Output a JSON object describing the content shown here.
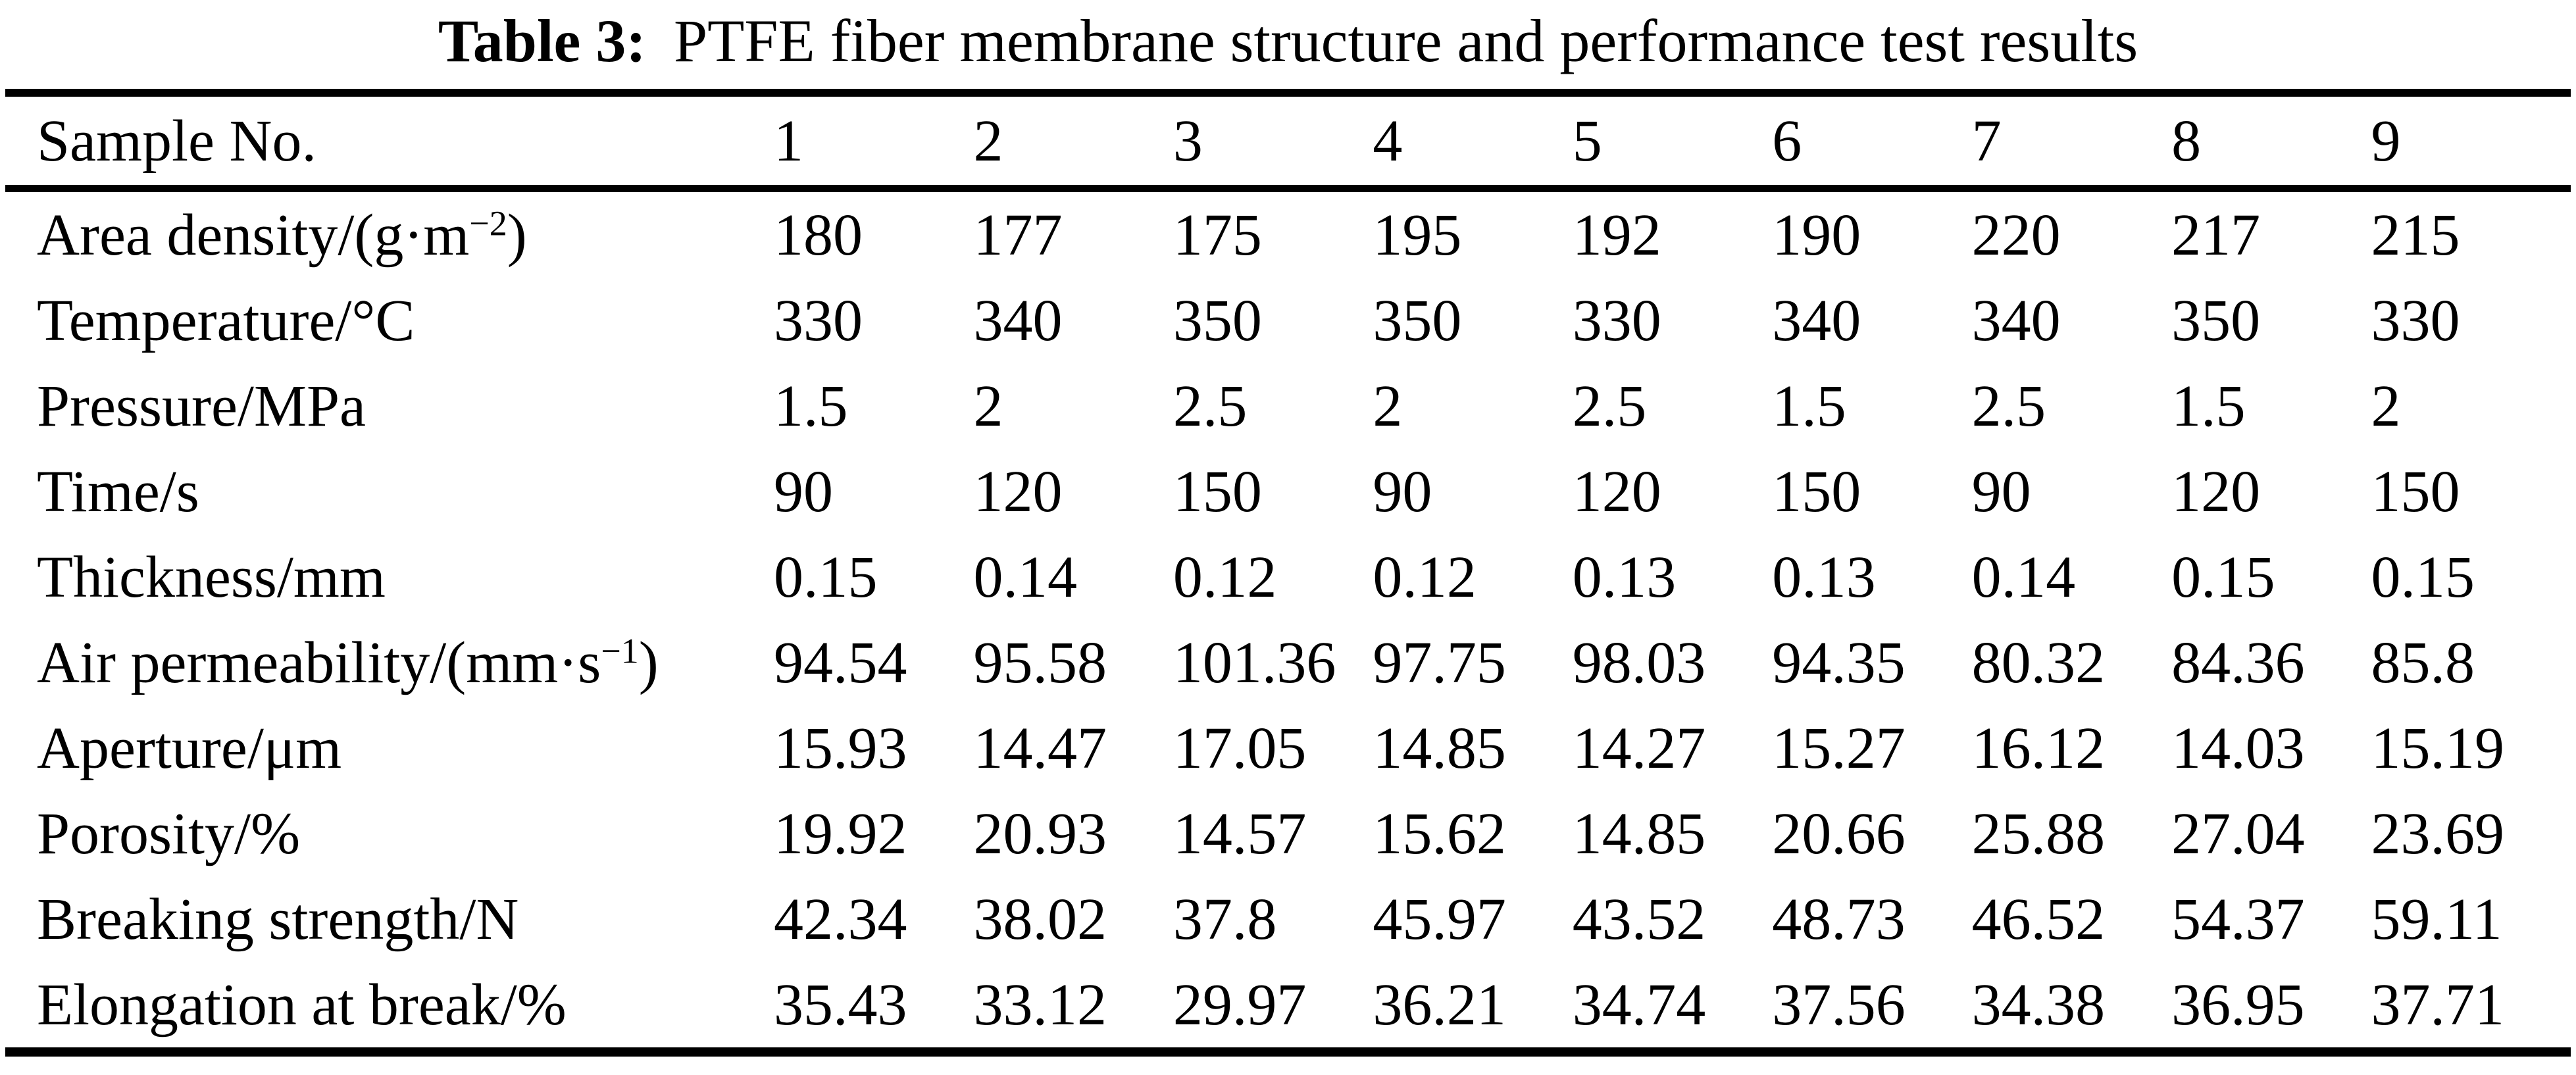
{
  "caption": {
    "label": "Table 3:",
    "text": "PTFE fiber membrane structure and performance test results"
  },
  "table": {
    "columns": [
      "Sample No.",
      "1",
      "2",
      "3",
      "4",
      "5",
      "6",
      "7",
      "8",
      "9"
    ],
    "rows": [
      {
        "param": "Area density/(g·m",
        "sup": "−2",
        "after": ")",
        "values": [
          "180",
          "177",
          "175",
          "195",
          "192",
          "190",
          "220",
          "217",
          "215"
        ]
      },
      {
        "param": "Temperature/°C",
        "sup": "",
        "after": "",
        "values": [
          "330",
          "340",
          "350",
          "350",
          "330",
          "340",
          "340",
          "350",
          "330"
        ]
      },
      {
        "param": "Pressure/MPa",
        "sup": "",
        "after": "",
        "values": [
          "1.5",
          "2",
          "2.5",
          "2",
          "2.5",
          "1.5",
          "2.5",
          "1.5",
          "2"
        ]
      },
      {
        "param": "Time/s",
        "sup": "",
        "after": "",
        "values": [
          "90",
          "120",
          "150",
          "90",
          "120",
          "150",
          "90",
          "120",
          "150"
        ]
      },
      {
        "param": "Thickness/mm",
        "sup": "",
        "after": "",
        "values": [
          "0.15",
          "0.14",
          "0.12",
          "0.12",
          "0.13",
          "0.13",
          "0.14",
          "0.15",
          "0.15"
        ]
      },
      {
        "param": "Air permeability/(mm·s",
        "sup": "−1",
        "after": ")",
        "values": [
          "94.54",
          "95.58",
          "101.36",
          "97.75",
          "98.03",
          "94.35",
          "80.32",
          "84.36",
          "85.8"
        ]
      },
      {
        "param": "Aperture/μm",
        "sup": "",
        "after": "",
        "values": [
          "15.93",
          "14.47",
          "17.05",
          "14.85",
          "14.27",
          "15.27",
          "16.12",
          "14.03",
          "15.19"
        ]
      },
      {
        "param": "Porosity/%",
        "sup": "",
        "after": "",
        "values": [
          "19.92",
          "20.93",
          "14.57",
          "15.62",
          "14.85",
          "20.66",
          "25.88",
          "27.04",
          "23.69"
        ]
      },
      {
        "param": "Breaking strength/N",
        "sup": "",
        "after": "",
        "values": [
          "42.34",
          "38.02",
          "37.8",
          "45.97",
          "43.52",
          "48.73",
          "46.52",
          "54.37",
          "59.11"
        ]
      },
      {
        "param": "Elongation at break/%",
        "sup": "",
        "after": "",
        "values": [
          "35.43",
          "33.12",
          "29.97",
          "36.21",
          "34.74",
          "37.56",
          "34.38",
          "36.95",
          "37.71"
        ]
      }
    ]
  }
}
